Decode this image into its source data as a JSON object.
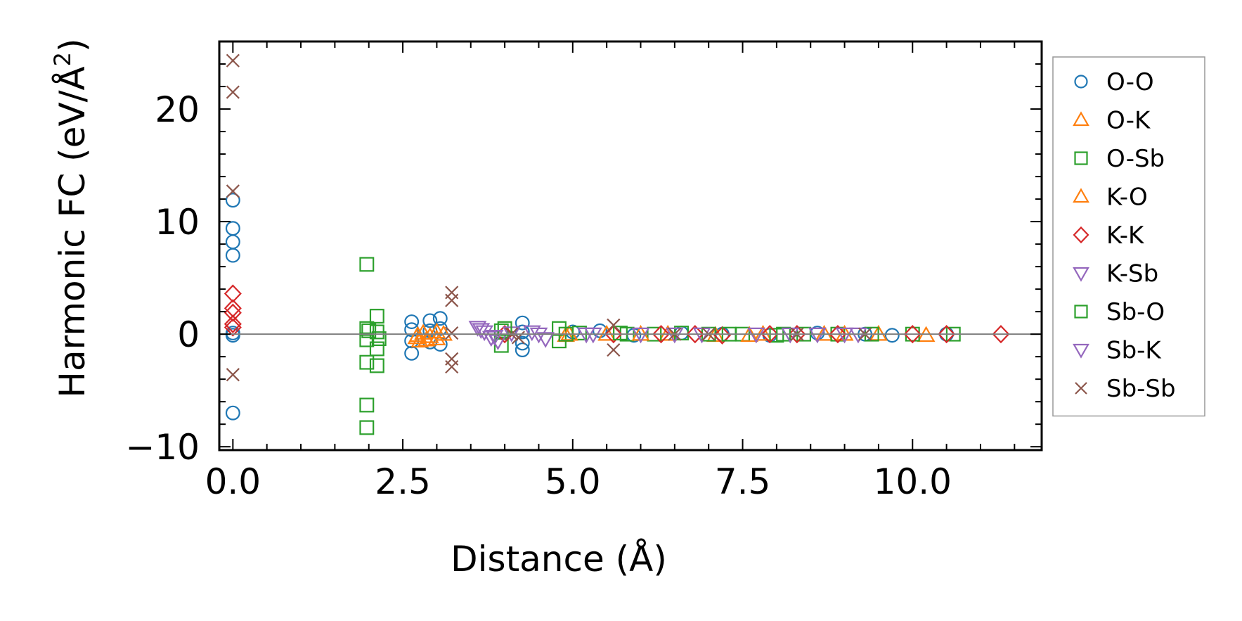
{
  "chart_data": {
    "type": "scatter",
    "title": "",
    "xlabel": "Distance (Å)",
    "ylabel_main": "Harmonic FC (eV/Å",
    "ylabel_sup": "2",
    "ylabel_end": ")",
    "xlim": [
      -0.2,
      11.9
    ],
    "ylim": [
      -10.3,
      26.0
    ],
    "x_major_ticks": [
      0.0,
      2.5,
      5.0,
      7.5,
      10.0
    ],
    "x_tick_labels": [
      "0.0",
      "2.5",
      "5.0",
      "7.5",
      "10.0"
    ],
    "y_major_ticks": [
      -10,
      0,
      10,
      20
    ],
    "y_tick_labels": [
      "−10",
      "0",
      "10",
      "20"
    ],
    "zero_line": 0,
    "legend_position": "outside-right",
    "series": [
      {
        "name": "O-O",
        "marker": "circle",
        "color": "#1f77b4",
        "points": [
          [
            0,
            11.9
          ],
          [
            0,
            9.4
          ],
          [
            0,
            8.2
          ],
          [
            0,
            7.0
          ],
          [
            0,
            0.1
          ],
          [
            0,
            -0.1
          ],
          [
            0,
            -7.0
          ],
          [
            2.63,
            1.1
          ],
          [
            2.63,
            0.4
          ],
          [
            2.63,
            -0.6
          ],
          [
            2.63,
            -1.7
          ],
          [
            2.9,
            1.2
          ],
          [
            2.9,
            0.3
          ],
          [
            2.9,
            -0.7
          ],
          [
            3.05,
            1.4
          ],
          [
            3.05,
            0.5
          ],
          [
            3.05,
            -0.9
          ],
          [
            4.26,
            1.0
          ],
          [
            4.26,
            0.2
          ],
          [
            4.26,
            -0.8
          ],
          [
            4.26,
            -1.4
          ],
          [
            5.0,
            0.2
          ],
          [
            5.4,
            0.3
          ],
          [
            5.9,
            -0.1
          ],
          [
            6.6,
            0.1
          ],
          [
            7.2,
            0.0
          ],
          [
            7.9,
            -0.1
          ],
          [
            8.6,
            0.1
          ],
          [
            9.3,
            0.0
          ],
          [
            9.7,
            -0.1
          ],
          [
            10.5,
            0.0
          ]
        ]
      },
      {
        "name": "O-K",
        "marker": "triangle-up",
        "color": "#ff7f0e",
        "points": [
          [
            2.7,
            -0.3
          ],
          [
            2.75,
            -0.6
          ],
          [
            2.8,
            0.1
          ],
          [
            2.9,
            -0.2
          ],
          [
            3.0,
            -0.4
          ],
          [
            3.1,
            0.0
          ],
          [
            4.9,
            -0.1
          ],
          [
            5.5,
            0.0
          ],
          [
            6.4,
            0.0
          ],
          [
            7.1,
            -0.1
          ],
          [
            7.8,
            0.0
          ],
          [
            8.7,
            0.0
          ],
          [
            9.5,
            0.0
          ],
          [
            10.2,
            -0.1
          ]
        ]
      },
      {
        "name": "O-Sb",
        "marker": "square",
        "color": "#2ca02c",
        "points": [
          [
            1.97,
            6.2
          ],
          [
            1.97,
            0.5
          ],
          [
            1.97,
            -0.5
          ],
          [
            1.97,
            -2.5
          ],
          [
            1.97,
            -6.3
          ],
          [
            1.97,
            -8.3
          ],
          [
            2.12,
            1.6
          ],
          [
            2.12,
            0.2
          ],
          [
            2.12,
            -1.3
          ],
          [
            2.12,
            -2.8
          ],
          [
            3.95,
            0.3
          ],
          [
            3.95,
            -1.0
          ],
          [
            4.8,
            0.5
          ],
          [
            4.8,
            -0.6
          ],
          [
            5.1,
            0.1
          ],
          [
            5.8,
            0.0
          ],
          [
            6.2,
            0.0
          ],
          [
            6.6,
            0.1
          ],
          [
            7.0,
            0.0
          ],
          [
            7.5,
            0.0
          ],
          [
            8.0,
            -0.1
          ],
          [
            8.4,
            0.0
          ],
          [
            8.9,
            0.0
          ],
          [
            9.4,
            0.0
          ],
          [
            10.0,
            0.0
          ],
          [
            10.6,
            0.0
          ]
        ]
      },
      {
        "name": "K-O",
        "marker": "triangle-up",
        "color": "#ff7f0e",
        "points": [
          [
            2.72,
            -0.1
          ],
          [
            2.85,
            -0.5
          ],
          [
            3.0,
            0.2
          ],
          [
            4.95,
            0.0
          ],
          [
            6.0,
            0.0
          ],
          [
            7.6,
            -0.1
          ],
          [
            9.0,
            0.0
          ]
        ]
      },
      {
        "name": "K-K",
        "marker": "diamond",
        "color": "#d62728",
        "points": [
          [
            0,
            3.6
          ],
          [
            0,
            2.3
          ],
          [
            0,
            1.9
          ],
          [
            0,
            0.9
          ],
          [
            0,
            0.6
          ],
          [
            4.0,
            0.0
          ],
          [
            5.6,
            0.0
          ],
          [
            6.3,
            0.0
          ],
          [
            6.8,
            0.0
          ],
          [
            7.2,
            -0.1
          ],
          [
            7.9,
            0.0
          ],
          [
            8.3,
            0.0
          ],
          [
            8.9,
            0.0
          ],
          [
            10.0,
            0.0
          ],
          [
            10.5,
            0.0
          ],
          [
            11.3,
            0.0
          ]
        ]
      },
      {
        "name": "K-Sb",
        "marker": "triangle-down",
        "color": "#9467bd",
        "points": [
          [
            3.6,
            0.6
          ],
          [
            3.7,
            0.2
          ],
          [
            3.8,
            -0.3
          ],
          [
            3.9,
            -0.6
          ],
          [
            4.1,
            0.1
          ],
          [
            4.4,
            0.2
          ],
          [
            4.6,
            -0.4
          ],
          [
            5.2,
            0.0
          ],
          [
            6.0,
            0.0
          ],
          [
            6.9,
            0.0
          ],
          [
            7.7,
            0.0
          ],
          [
            8.6,
            0.0
          ],
          [
            9.2,
            0.0
          ]
        ]
      },
      {
        "name": "Sb-O",
        "marker": "square",
        "color": "#2ca02c",
        "points": [
          [
            2.0,
            0.3
          ],
          [
            2.15,
            -0.4
          ],
          [
            4.0,
            0.5
          ],
          [
            4.9,
            0.0
          ],
          [
            5.7,
            0.1
          ],
          [
            7.3,
            0.0
          ],
          [
            8.1,
            0.0
          ]
        ]
      },
      {
        "name": "Sb-K",
        "marker": "triangle-down",
        "color": "#9467bd",
        "points": [
          [
            3.65,
            0.4
          ],
          [
            3.85,
            -0.2
          ],
          [
            4.5,
            0.0
          ],
          [
            5.3,
            0.0
          ],
          [
            6.5,
            0.0
          ],
          [
            8.2,
            0.0
          ],
          [
            9.0,
            0.0
          ]
        ]
      },
      {
        "name": "Sb-Sb",
        "marker": "x",
        "color": "#8c564b",
        "points": [
          [
            0,
            24.3
          ],
          [
            0,
            21.5
          ],
          [
            0,
            12.7
          ],
          [
            0,
            -3.6
          ],
          [
            3.22,
            3.7
          ],
          [
            3.22,
            3.0
          ],
          [
            3.22,
            0.1
          ],
          [
            3.22,
            -2.2
          ],
          [
            3.22,
            -2.9
          ],
          [
            4.1,
            0.0
          ],
          [
            4.2,
            -0.3
          ],
          [
            5.6,
            0.8
          ],
          [
            5.6,
            -1.4
          ],
          [
            6.5,
            0.0
          ],
          [
            7.0,
            0.0
          ],
          [
            8.3,
            0.0
          ],
          [
            9.3,
            0.0
          ]
        ]
      }
    ]
  }
}
